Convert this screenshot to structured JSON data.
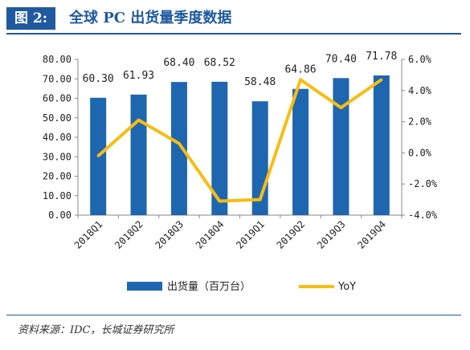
{
  "figure": {
    "tag": "图 2:",
    "title": "全球 PC 出货量季度数据",
    "source": "资料来源：IDC，长城证券研究所"
  },
  "colors": {
    "bar": "#1f66b0",
    "line": "#f7bd12",
    "accent": "#1f5aa0"
  },
  "chart_data": {
    "type": "bar",
    "categories": [
      "2018Q1",
      "2018Q2",
      "2018Q3",
      "2018Q4",
      "2019Q1",
      "2019Q2",
      "2019Q3",
      "2019Q4"
    ],
    "series": [
      {
        "name": "出货量（百万台）",
        "type": "bar",
        "axis": "left",
        "values": [
          60.3,
          61.93,
          68.4,
          68.52,
          58.48,
          64.86,
          70.4,
          71.78
        ],
        "labels": [
          "60.30",
          "61.93",
          "68.40",
          "68.52",
          "58.48",
          "64.86",
          "70.40",
          "71.78"
        ]
      },
      {
        "name": "YoY",
        "type": "line",
        "axis": "right",
        "values": [
          -0.2,
          2.1,
          0.6,
          -3.1,
          -3.0,
          4.7,
          2.9,
          4.7
        ]
      }
    ],
    "y_left": {
      "ylim": [
        0,
        80
      ],
      "ticks": [
        0,
        10,
        20,
        30,
        40,
        50,
        60,
        70,
        80
      ],
      "tick_labels": [
        "0.00",
        "10.00",
        "20.00",
        "30.00",
        "40.00",
        "50.00",
        "60.00",
        "70.00",
        "80.00"
      ]
    },
    "y_right": {
      "ylim": [
        -4,
        6
      ],
      "ticks": [
        -4,
        -2,
        0,
        2,
        4,
        6
      ],
      "tick_labels": [
        "-4.0%",
        "-2.0%",
        "0.0%",
        "2.0%",
        "4.0%",
        "6.0%"
      ]
    },
    "grid": false,
    "legend": "bottom"
  }
}
